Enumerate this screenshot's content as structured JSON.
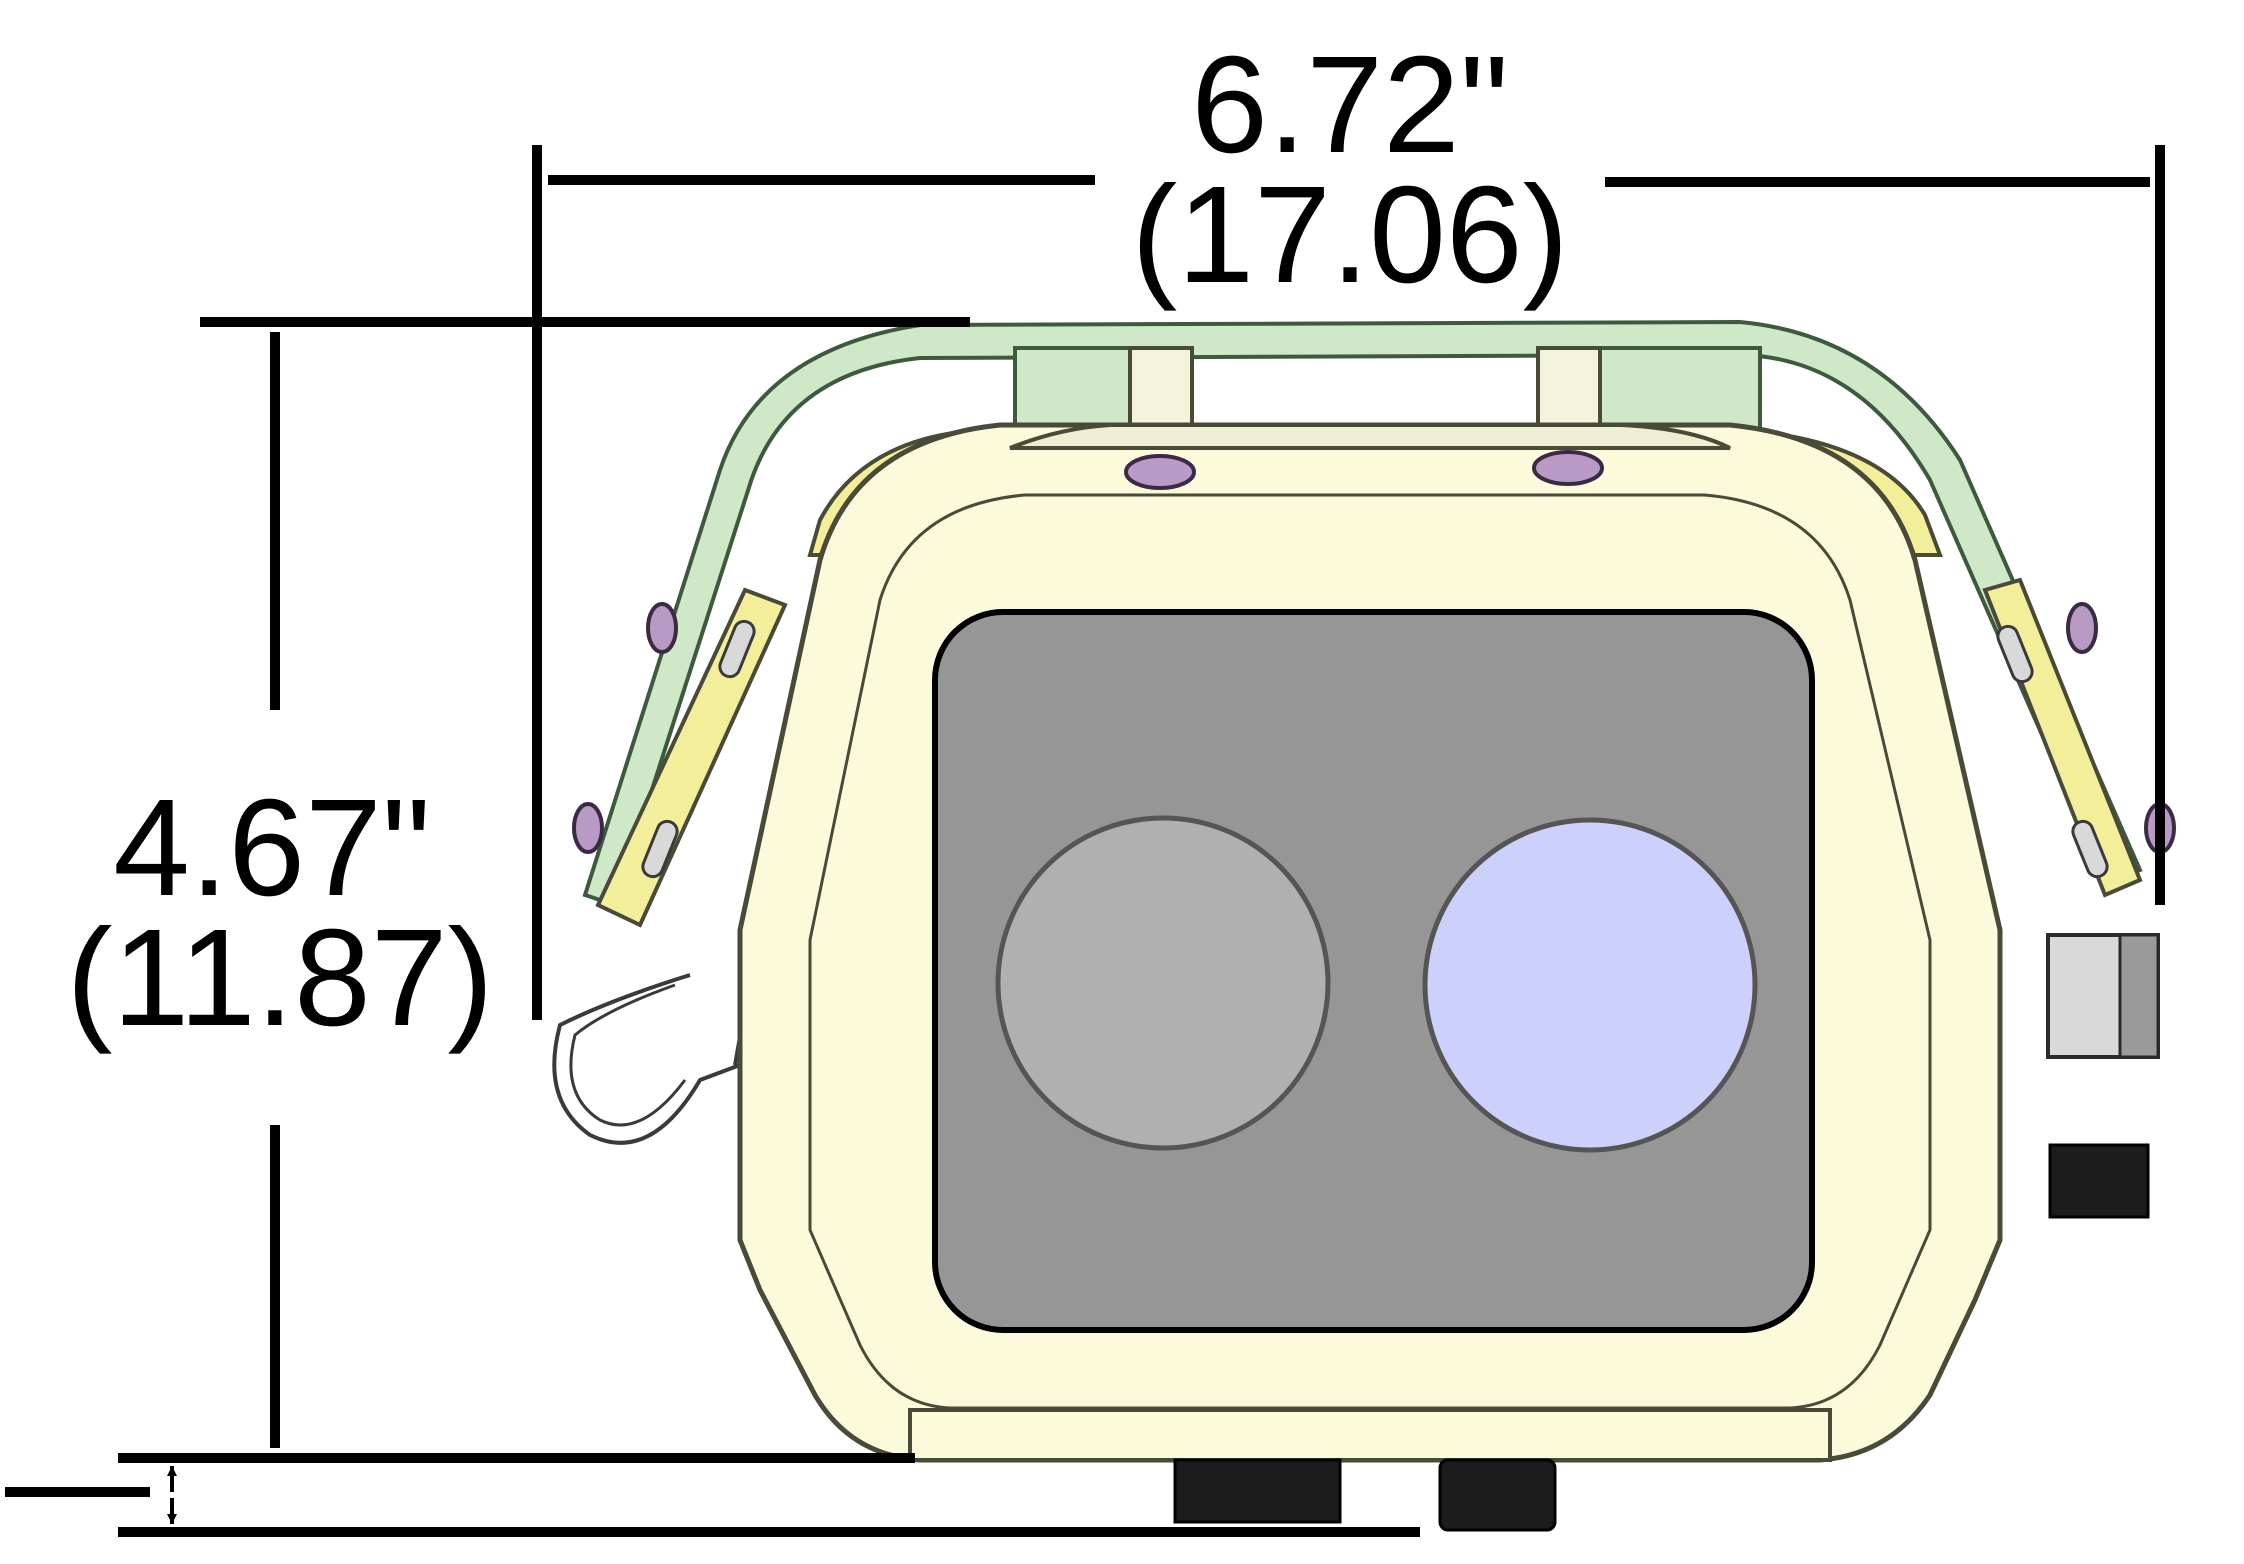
{
  "dimensions": {
    "width": {
      "inches": "6.72\"",
      "cm": "(17.06)"
    },
    "height": {
      "inches": "4.67\"",
      "cm": "(11.87)"
    }
  },
  "colors": {
    "housing": "#fbfbdc",
    "housing_edge": "#4a4a38",
    "bracket": "#cfe8c8",
    "bracket_edge": "#3e5a3e",
    "pad": "#f2ee9a",
    "window": "#969696",
    "left_lens": "#b0b0b0",
    "right_lens": "#ccd0fa",
    "screw": "#b89ac4",
    "connector": "#1c1c1c",
    "dimension_line": "#000000"
  }
}
